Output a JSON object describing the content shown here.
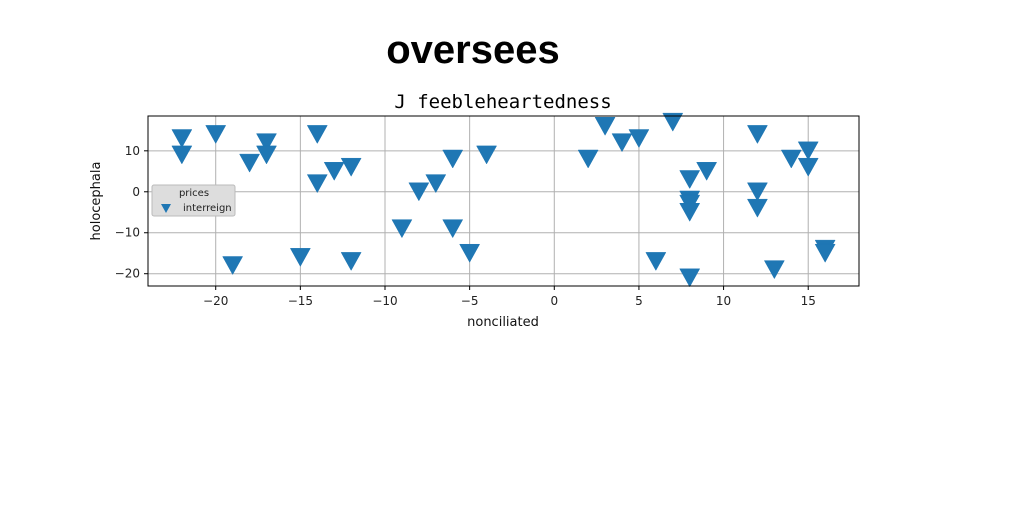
{
  "chart_data": {
    "type": "scatter",
    "suptitle": "oversees",
    "title": "J feebleheartedness",
    "xlabel": "nonciliated",
    "ylabel": "holocephala",
    "xlim": [
      -24,
      18
    ],
    "ylim": [
      -23,
      18.5
    ],
    "xticks": [
      -20,
      -15,
      -10,
      -5,
      0,
      5,
      10,
      15
    ],
    "yticks": [
      -20,
      -10,
      0,
      10
    ],
    "grid": true,
    "marker": "triangle-down",
    "legend": {
      "title": "prices",
      "placement": "center-left"
    },
    "series": [
      {
        "name": "interreign",
        "color": "#1f77b4",
        "points": [
          [
            -22,
            13
          ],
          [
            -22,
            9
          ],
          [
            -20,
            14
          ],
          [
            -19,
            -18
          ],
          [
            -18,
            7
          ],
          [
            -17,
            12
          ],
          [
            -17,
            9
          ],
          [
            -15,
            -16
          ],
          [
            -14,
            14
          ],
          [
            -14,
            2
          ],
          [
            -13,
            5
          ],
          [
            -12,
            6
          ],
          [
            -12,
            -17
          ],
          [
            -9,
            -9
          ],
          [
            -8,
            0
          ],
          [
            -7,
            2
          ],
          [
            -6,
            8
          ],
          [
            -6,
            -9
          ],
          [
            -5,
            -15
          ],
          [
            -4,
            9
          ],
          [
            2,
            8
          ],
          [
            3,
            16
          ],
          [
            4,
            12
          ],
          [
            5,
            13
          ],
          [
            6,
            -17
          ],
          [
            7,
            17
          ],
          [
            8,
            3
          ],
          [
            8,
            -2
          ],
          [
            8,
            -3
          ],
          [
            8,
            -5
          ],
          [
            8,
            -21
          ],
          [
            9,
            5
          ],
          [
            12,
            14
          ],
          [
            12,
            0
          ],
          [
            12,
            -4
          ],
          [
            13,
            -19
          ],
          [
            14,
            8
          ],
          [
            15,
            10
          ],
          [
            15,
            6
          ],
          [
            16,
            -14
          ],
          [
            16,
            -15
          ]
        ]
      }
    ]
  }
}
